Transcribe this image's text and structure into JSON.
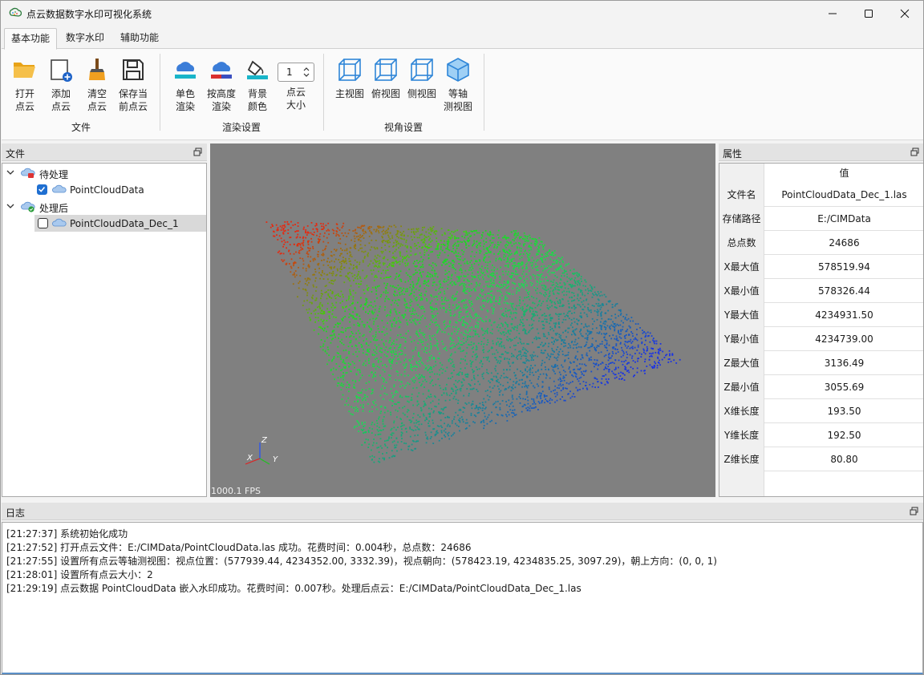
{
  "window": {
    "title": "点云数据数字水印可视化系统"
  },
  "tabs": [
    "基本功能",
    "数字水印",
    "辅助功能"
  ],
  "ribbon": {
    "file_group": {
      "label": "文件",
      "buttons": [
        "打开\n点云",
        "添加\n点云",
        "清空\n点云",
        "保存当\n前点云"
      ]
    },
    "render_group": {
      "label": "渲染设置",
      "buttons": [
        "单色\n渲染",
        "按高度\n渲染",
        "背景\n颜色",
        "点云\n大小"
      ],
      "point_size": "1"
    },
    "view_group": {
      "label": "视角设置",
      "buttons": [
        "主视图",
        "俯视图",
        "侧视图",
        "等轴\n测视图"
      ]
    }
  },
  "file_panel": {
    "title": "文件",
    "tree": [
      {
        "label": "待处理",
        "children": [
          {
            "label": "PointCloudData",
            "checked": true
          }
        ]
      },
      {
        "label": "处理后",
        "children": [
          {
            "label": "PointCloudData_Dec_1",
            "checked": false
          }
        ]
      }
    ]
  },
  "viewport": {
    "fps": "1000.1 FPS",
    "axes": {
      "x": "X",
      "y": "Y",
      "z": "Z"
    }
  },
  "property_panel": {
    "title": "属性",
    "value_header": "值",
    "rows": [
      {
        "key": "文件名",
        "value": "PointCloudData_Dec_1.las"
      },
      {
        "key": "存储路径",
        "value": "E:/CIMData"
      },
      {
        "key": "总点数",
        "value": "24686"
      },
      {
        "key": "X最大值",
        "value": "578519.94"
      },
      {
        "key": "X最小值",
        "value": "578326.44"
      },
      {
        "key": "Y最大值",
        "value": "4234931.50"
      },
      {
        "key": "Y最小值",
        "value": "4234739.00"
      },
      {
        "key": "Z最大值",
        "value": "3136.49"
      },
      {
        "key": "Z最小值",
        "value": "3055.69"
      },
      {
        "key": "X维长度",
        "value": "193.50"
      },
      {
        "key": "Y维长度",
        "value": "192.50"
      },
      {
        "key": "Z维长度",
        "value": "80.80"
      }
    ]
  },
  "log_panel": {
    "title": "日志",
    "lines": [
      "[21:27:37] 系统初始化成功",
      "[21:27:52] 打开点云文件：E:/CIMData/PointCloudData.las 成功。花费时间：0.004秒，总点数：24686",
      "[21:27:55] 设置所有点云等轴测视图：视点位置：(577939.44, 4234352.00, 3332.39)，视点朝向：(578423.19, 4234835.25, 3097.29)，朝上方向：(0, 0, 1)",
      "[21:28:01] 设置所有点云大小：2",
      "[21:29:19] 点云数据 PointCloudData 嵌入水印成功。花费时间：0.007秒。处理后点云：E:/CIMData/PointCloudData_Dec_1.las"
    ]
  }
}
